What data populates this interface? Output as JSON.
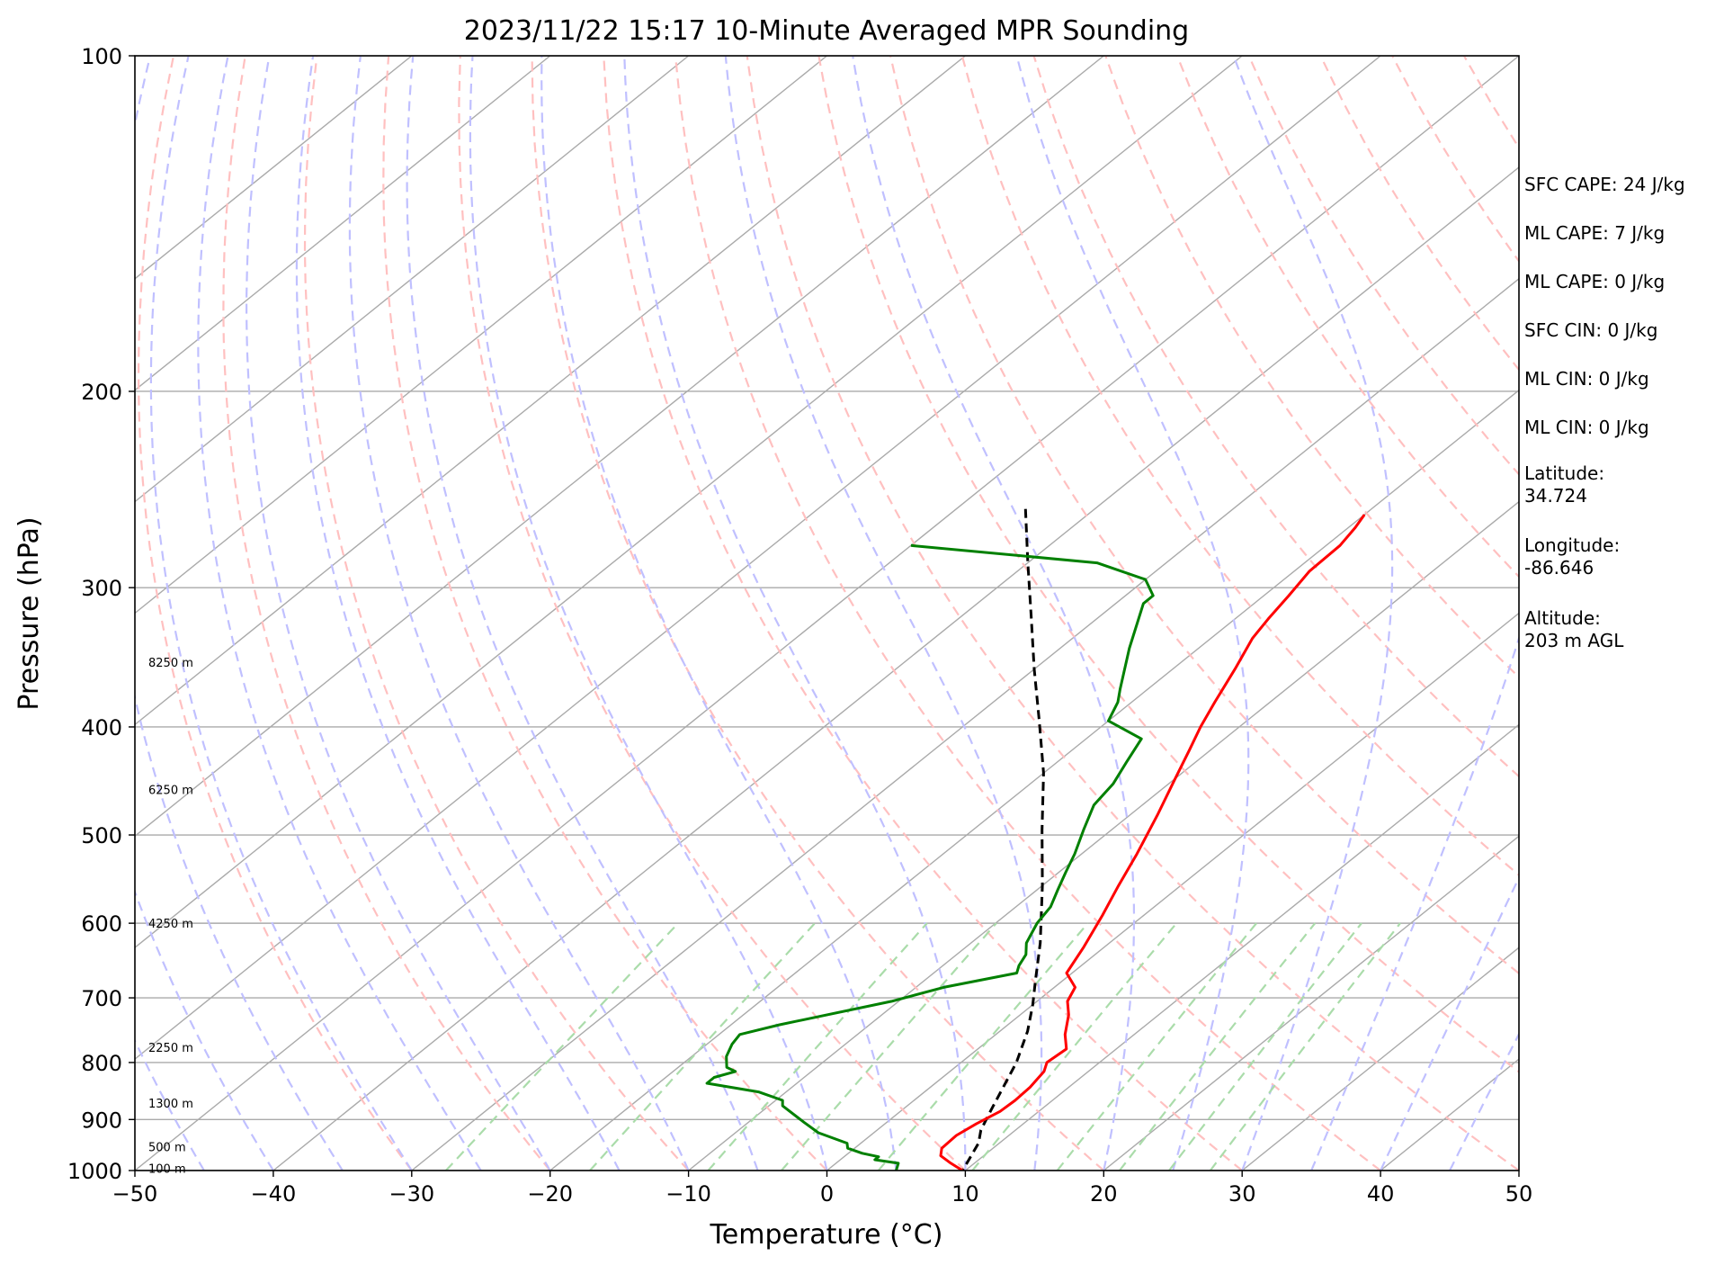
{
  "chart_data": {
    "type": "skew-t",
    "title": "2023/11/22 15:17 10-Minute Averaged MPR Sounding",
    "xlabel": "Temperature (°C)",
    "ylabel": "Pressure (hPa)",
    "xlim": [
      -50,
      50
    ],
    "ylim": [
      1000,
      100
    ],
    "y_scale": "log",
    "x_ticks": [
      "−50",
      "−40",
      "−30",
      "−20",
      "−10",
      "0",
      "10",
      "20",
      "30",
      "40",
      "50"
    ],
    "x_tick_values": [
      -50,
      -40,
      -30,
      -20,
      -10,
      0,
      10,
      20,
      30,
      40,
      50
    ],
    "y_ticks": [
      "100",
      "200",
      "300",
      "400",
      "500",
      "600",
      "700",
      "800",
      "900",
      "1000"
    ],
    "y_tick_values": [
      100,
      200,
      300,
      400,
      500,
      600,
      700,
      800,
      900,
      1000
    ],
    "grid": true,
    "height_labels": [
      {
        "text": "8250 m",
        "p": 350
      },
      {
        "text": "6250 m",
        "p": 455
      },
      {
        "text": "4250 m",
        "p": 600
      },
      {
        "text": "2250 m",
        "p": 775
      },
      {
        "text": "1300 m",
        "p": 870
      },
      {
        "text": "500 m",
        "p": 952
      },
      {
        "text": "100 m",
        "p": 995
      }
    ],
    "temperature": {
      "color": "#ff0000",
      "points": [
        [
          -20,
          258
        ],
        [
          -19.5,
          265
        ],
        [
          -19,
          275
        ],
        [
          -18.9,
          290
        ],
        [
          -18.2,
          305
        ],
        [
          -17.6,
          320
        ],
        [
          -17,
          333
        ],
        [
          -15.5,
          355
        ],
        [
          -14,
          380
        ],
        [
          -12.8,
          400
        ],
        [
          -11.5,
          420
        ],
        [
          -10,
          445
        ],
        [
          -8,
          480
        ],
        [
          -6,
          520
        ],
        [
          -4.5,
          555
        ],
        [
          -3,
          590
        ],
        [
          -1.5,
          630
        ],
        [
          -0.4,
          665
        ],
        [
          1.5,
          685
        ],
        [
          2.2,
          705
        ],
        [
          3.5,
          725
        ],
        [
          5,
          755
        ],
        [
          6.4,
          778
        ],
        [
          6.2,
          800
        ],
        [
          6.8,
          815
        ],
        [
          7.2,
          842
        ],
        [
          7.3,
          865
        ],
        [
          7.2,
          885
        ],
        [
          6.6,
          908
        ],
        [
          6.2,
          930
        ],
        [
          6.3,
          955
        ],
        [
          6.9,
          970
        ],
        [
          8.3,
          985
        ],
        [
          9.8,
          1000
        ]
      ]
    },
    "dewpoint": {
      "color": "#008000",
      "points": [
        [
          -50,
          275
        ],
        [
          -35,
          285
        ],
        [
          -30,
          295
        ],
        [
          -28,
          305
        ],
        [
          -28,
          310
        ],
        [
          -25,
          340
        ],
        [
          -22,
          370
        ],
        [
          -21,
          380
        ],
        [
          -20,
          395
        ],
        [
          -16,
          410
        ],
        [
          -15,
          430
        ],
        [
          -14,
          450
        ],
        [
          -13.5,
          470
        ],
        [
          -12,
          495
        ],
        [
          -10.5,
          520
        ],
        [
          -9.5,
          540
        ],
        [
          -8.5,
          560
        ],
        [
          -7.5,
          580
        ],
        [
          -7,
          600
        ],
        [
          -6,
          625
        ],
        [
          -5,
          640
        ],
        [
          -4.5,
          655
        ],
        [
          -4,
          665
        ],
        [
          -8,
          685
        ],
        [
          -10.5,
          705
        ],
        [
          -16.5,
          740
        ],
        [
          -18.5,
          755
        ],
        [
          -18.2,
          770
        ],
        [
          -17.5,
          790
        ],
        [
          -16.5,
          808
        ],
        [
          -15.5,
          815
        ],
        [
          -16.5,
          825
        ],
        [
          -16.5,
          835
        ],
        [
          -12,
          850
        ],
        [
          -9.5,
          865
        ],
        [
          -9,
          875
        ],
        [
          -6,
          905
        ],
        [
          -4,
          925
        ],
        [
          -1,
          945
        ],
        [
          -0.5,
          955
        ],
        [
          1,
          965
        ],
        [
          2.5,
          972
        ],
        [
          2.5,
          978
        ],
        [
          4.5,
          985
        ],
        [
          5,
          1000
        ]
      ]
    },
    "parcel": {
      "color": "#000000",
      "dashed": true,
      "points": [
        [
          -45,
          255
        ],
        [
          -40,
          285
        ],
        [
          -35,
          318
        ],
        [
          -30,
          355
        ],
        [
          -25,
          395
        ],
        [
          -20,
          440
        ],
        [
          -15,
          495
        ],
        [
          -10,
          555
        ],
        [
          -5,
          625
        ],
        [
          -2,
          675
        ],
        [
          0,
          710
        ],
        [
          2,
          750
        ],
        [
          4,
          800
        ],
        [
          5.5,
          850
        ],
        [
          6.5,
          885
        ],
        [
          7.5,
          920
        ],
        [
          8.5,
          945
        ],
        [
          9.8,
          1000
        ]
      ]
    },
    "indices": [
      "SFC CAPE: 24 J/kg",
      "ML CAPE: 7 J/kg",
      "ML CAPE: 0 J/kg",
      "SFC CIN: 0 J/kg",
      "ML CIN: 0 J/kg",
      "ML CIN: 0 J/kg",
      "Latitude:\n34.724",
      "Longitude:\n-86.646",
      "Altitude:\n203 m AGL"
    ],
    "colors": {
      "isotherm": "#aaaaaa",
      "isobar": "#aaaaaa",
      "dry_adiabat": "#ffc0c0",
      "moist_adiabat": "#c0c0ff",
      "mixing_ratio": "#aadcaa"
    }
  }
}
